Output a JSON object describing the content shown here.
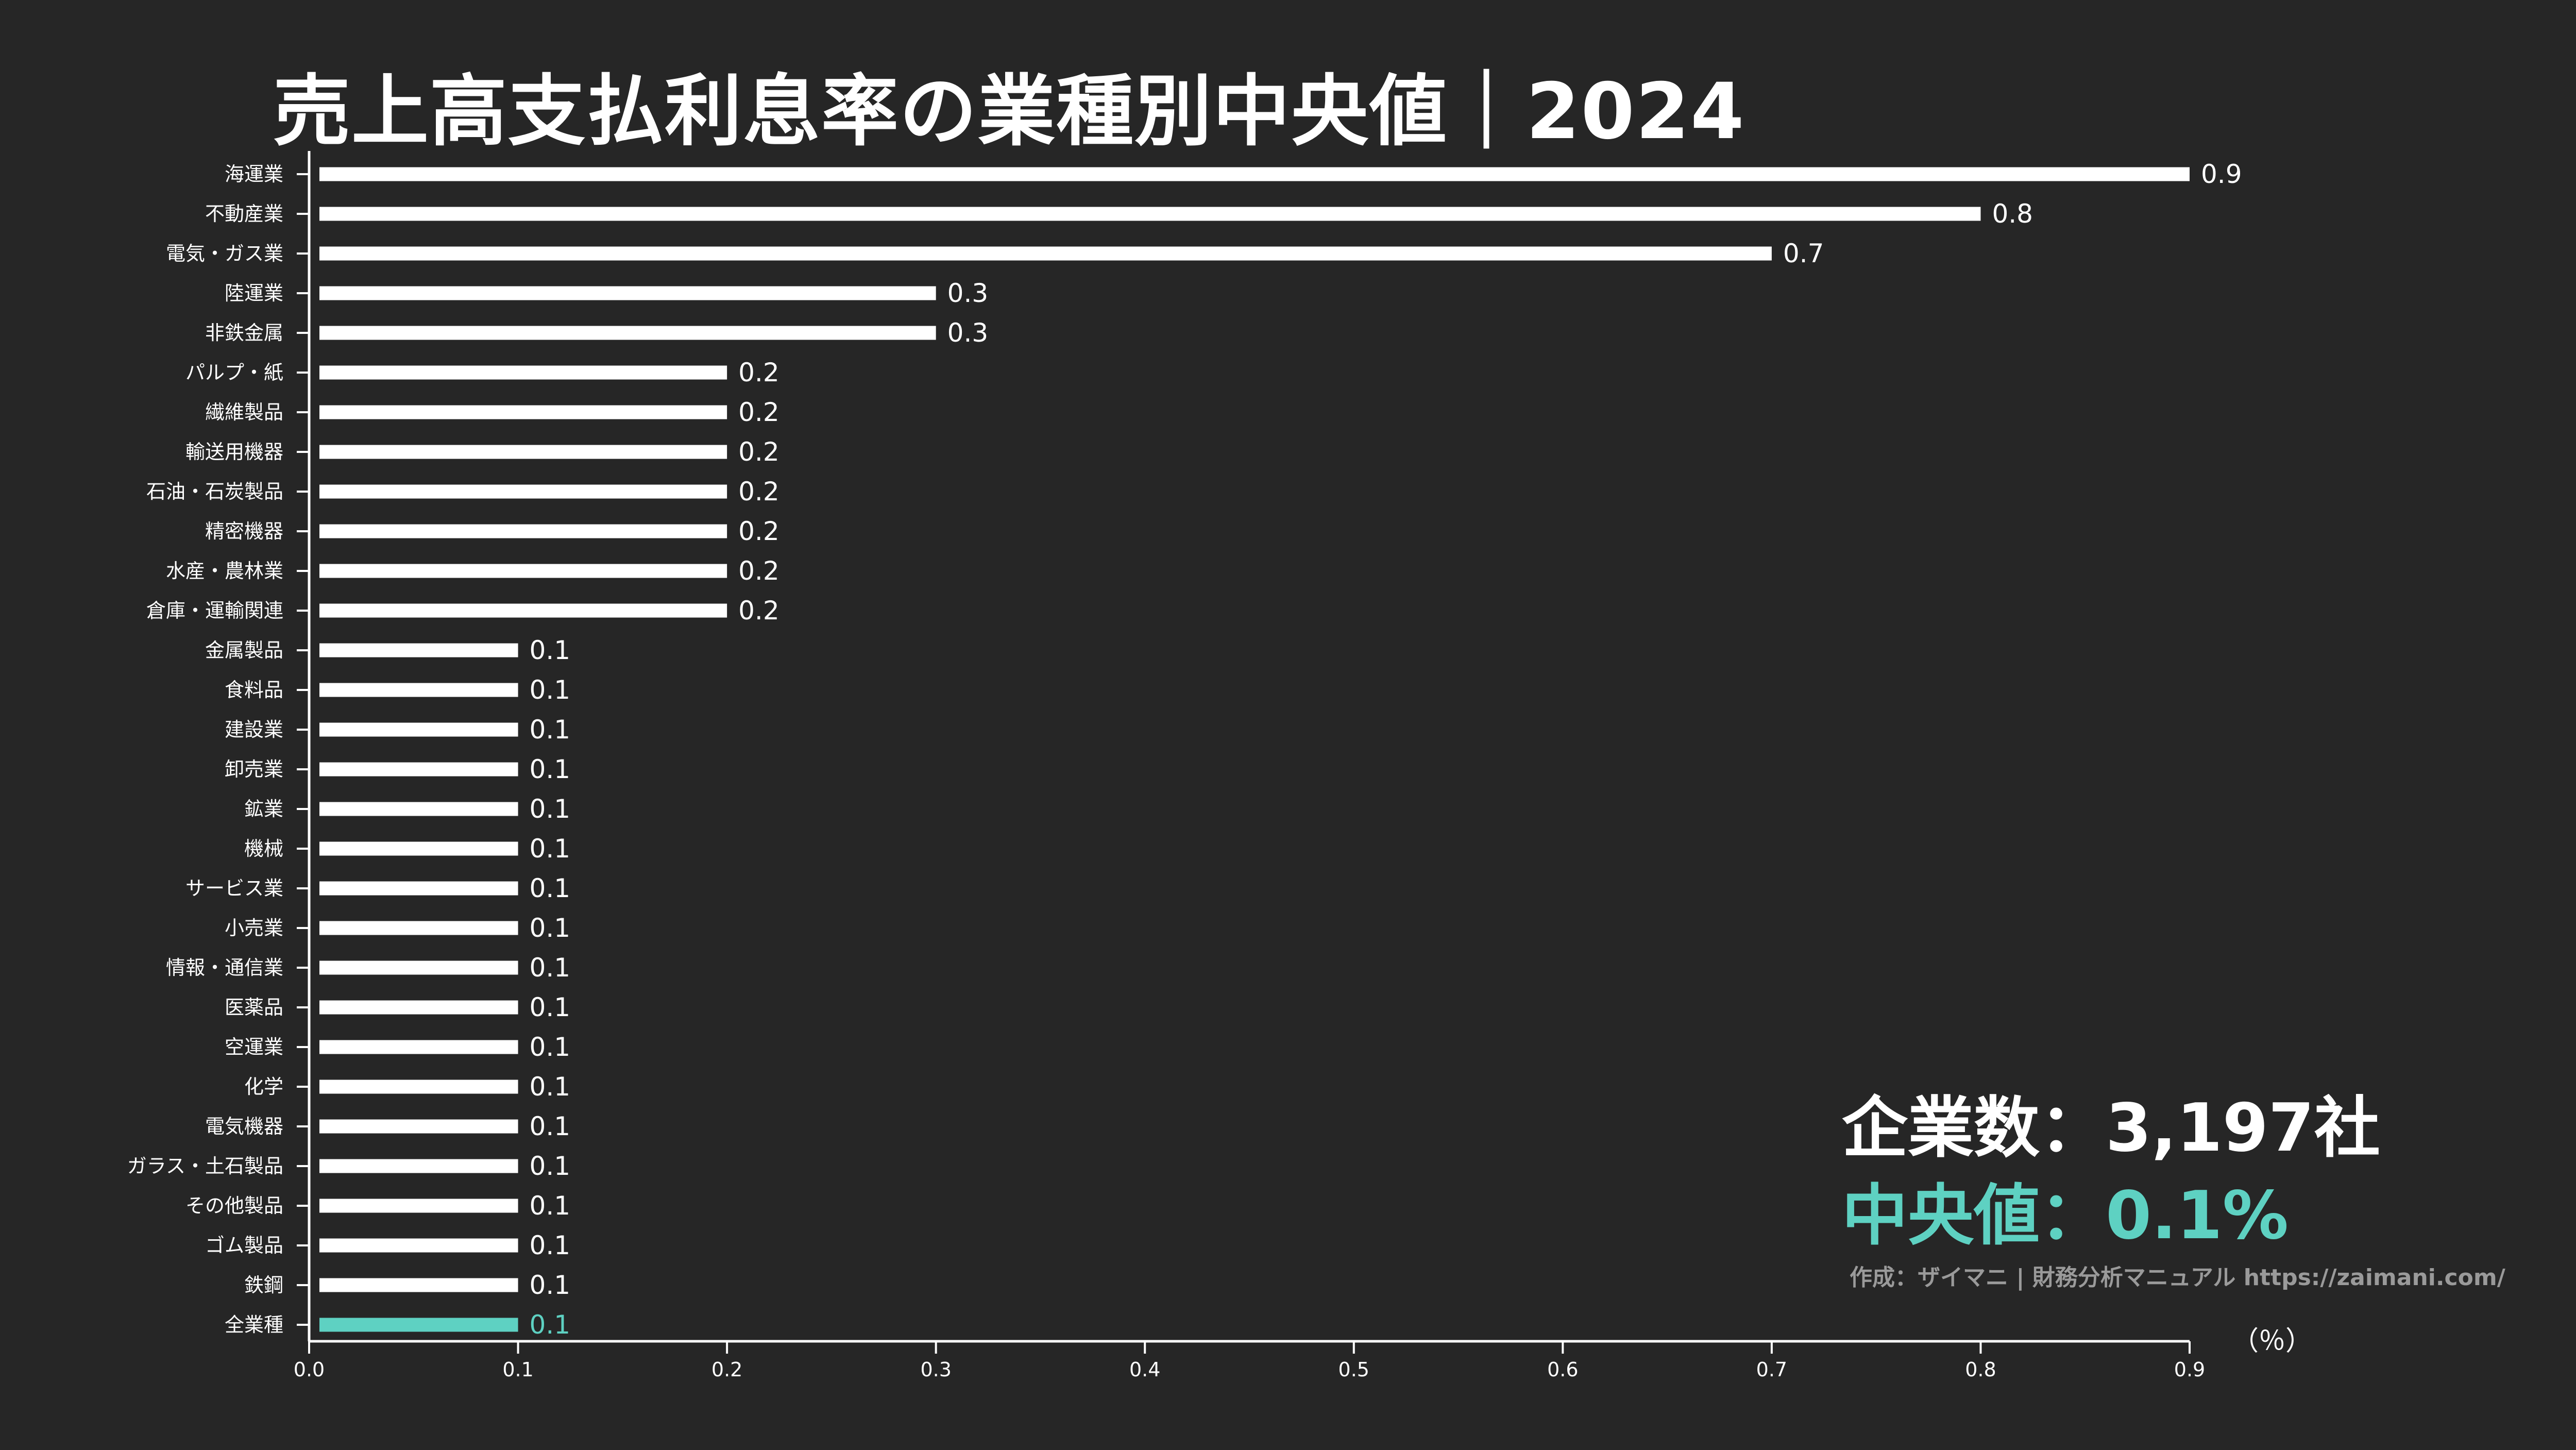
{
  "colors": {
    "background": "#262626",
    "bar": "#ffffff",
    "highlight": "#5ed1c2",
    "axis": "#ffffff",
    "credit": "#9a9a9a"
  },
  "chart_data": {
    "type": "bar",
    "orientation": "horizontal",
    "title": "売上高支払利息率の業種別中央値｜2024",
    "xlabel": "（％）",
    "ylabel": "",
    "xlim": [
      0.0,
      0.9
    ],
    "xticks": [
      "0.0",
      "0.1",
      "0.2",
      "0.3",
      "0.4",
      "0.5",
      "0.6",
      "0.7",
      "0.8",
      "0.9"
    ],
    "grid": false,
    "categories": [
      "海運業",
      "不動産業",
      "電気・ガス業",
      "陸運業",
      "非鉄金属",
      "パルプ・紙",
      "繊維製品",
      "輸送用機器",
      "石油・石炭製品",
      "精密機器",
      "水産・農林業",
      "倉庫・運輸関連",
      "金属製品",
      "食料品",
      "建設業",
      "卸売業",
      "鉱業",
      "機械",
      "サービス業",
      "小売業",
      "情報・通信業",
      "医薬品",
      "空運業",
      "化学",
      "電気機器",
      "ガラス・土石製品",
      "その他製品",
      "ゴム製品",
      "鉄鋼",
      "全業種"
    ],
    "values": [
      0.9,
      0.8,
      0.7,
      0.3,
      0.3,
      0.2,
      0.2,
      0.2,
      0.2,
      0.2,
      0.2,
      0.2,
      0.1,
      0.1,
      0.1,
      0.1,
      0.1,
      0.1,
      0.1,
      0.1,
      0.1,
      0.1,
      0.1,
      0.1,
      0.1,
      0.1,
      0.1,
      0.1,
      0.1,
      0.1
    ],
    "labels": [
      "0.9",
      "0.8",
      "0.7",
      "0.3",
      "0.3",
      "0.2",
      "0.2",
      "0.2",
      "0.2",
      "0.2",
      "0.2",
      "0.2",
      "0.1",
      "0.1",
      "0.1",
      "0.1",
      "0.1",
      "0.1",
      "0.1",
      "0.1",
      "0.1",
      "0.1",
      "0.1",
      "0.1",
      "0.1",
      "0.1",
      "0.1",
      "0.1",
      "0.1",
      "0.1"
    ],
    "highlight_category": "全業種"
  },
  "stats": {
    "company_count": "企業数：3,197社",
    "median": "中央値：0.1%"
  },
  "credit": "作成：ザイマニ | 財務分析マニュアル https://zaimani.com/"
}
